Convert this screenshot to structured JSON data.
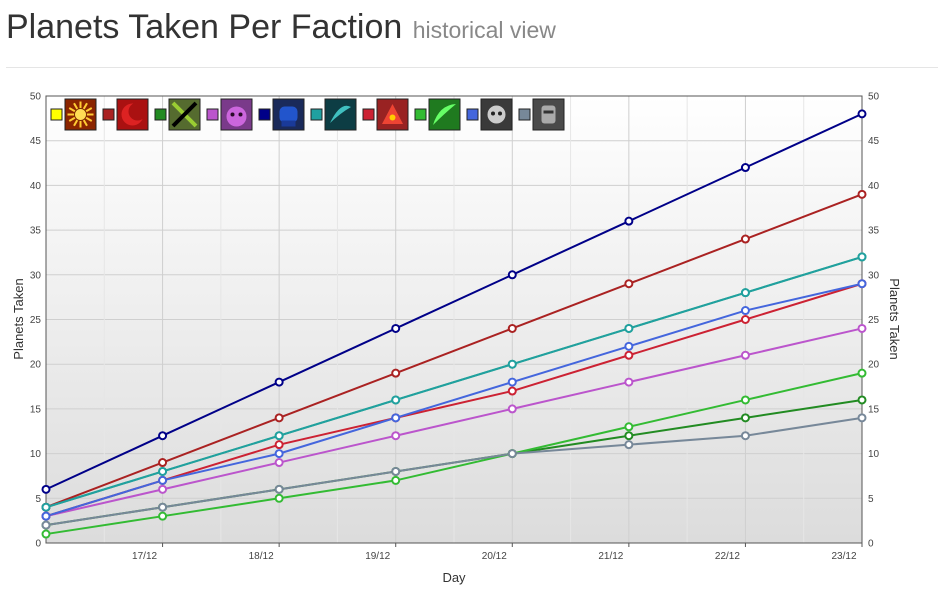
{
  "header": {
    "title": "Planets Taken Per Faction",
    "subtitle": "historical view"
  },
  "chart_data": {
    "type": "line",
    "title": "",
    "xlabel": "Day",
    "ylabel": "Planets Taken",
    "y2label": "Planets Taken",
    "ylim": [
      0,
      50
    ],
    "yticks": [
      0,
      5,
      10,
      15,
      20,
      25,
      30,
      35,
      40,
      45,
      50
    ],
    "x_tick_labels": [
      "17/12",
      "18/12",
      "19/12",
      "20/12",
      "21/12",
      "22/12",
      "23/12"
    ],
    "x_points": [
      "16/12",
      "17/12",
      "18/12",
      "19/12",
      "20/12",
      "21/12",
      "22/12",
      "23/12"
    ],
    "grid": true,
    "legend": "top-left",
    "series": [
      {
        "color": "#ffff00",
        "icon": "sunburst-emblem-icon",
        "values": [
          4,
          8,
          12,
          16,
          20,
          24,
          28,
          32
        ]
      },
      {
        "color": "#aa2222",
        "icon": "red-crescent-emblem-icon",
        "values": [
          4,
          9,
          14,
          19,
          24,
          29,
          34,
          39
        ]
      },
      {
        "color": "#228b22",
        "icon": "crossed-blades-emblem-icon",
        "values": [
          2,
          4,
          6,
          8,
          10,
          12,
          14,
          16
        ]
      },
      {
        "color": "#bb55cc",
        "icon": "purple-beast-emblem-icon",
        "values": [
          3,
          6,
          9,
          12,
          15,
          18,
          21,
          24
        ]
      },
      {
        "color": "#000088",
        "icon": "blue-fist-emblem-icon",
        "values": [
          6,
          12,
          18,
          24,
          30,
          36,
          42,
          48
        ]
      },
      {
        "color": "#20a0a0",
        "icon": "teal-wing-emblem-icon",
        "values": [
          4,
          8,
          12,
          16,
          20,
          24,
          28,
          32
        ]
      },
      {
        "color": "#cc2233",
        "icon": "red-dragon-emblem-icon",
        "values": [
          3,
          7,
          11,
          14,
          17,
          21,
          25,
          29
        ]
      },
      {
        "color": "#33bb33",
        "icon": "green-claw-emblem-icon",
        "values": [
          1,
          3,
          5,
          7,
          10,
          13,
          16,
          19
        ]
      },
      {
        "color": "#4466dd",
        "icon": "wolf-skull-emblem-icon",
        "values": [
          3,
          7,
          10,
          14,
          18,
          22,
          26,
          29
        ]
      },
      {
        "color": "#778899",
        "icon": "grey-warrior-emblem-icon",
        "values": [
          2,
          4,
          6,
          8,
          10,
          11,
          12,
          14
        ]
      }
    ]
  }
}
